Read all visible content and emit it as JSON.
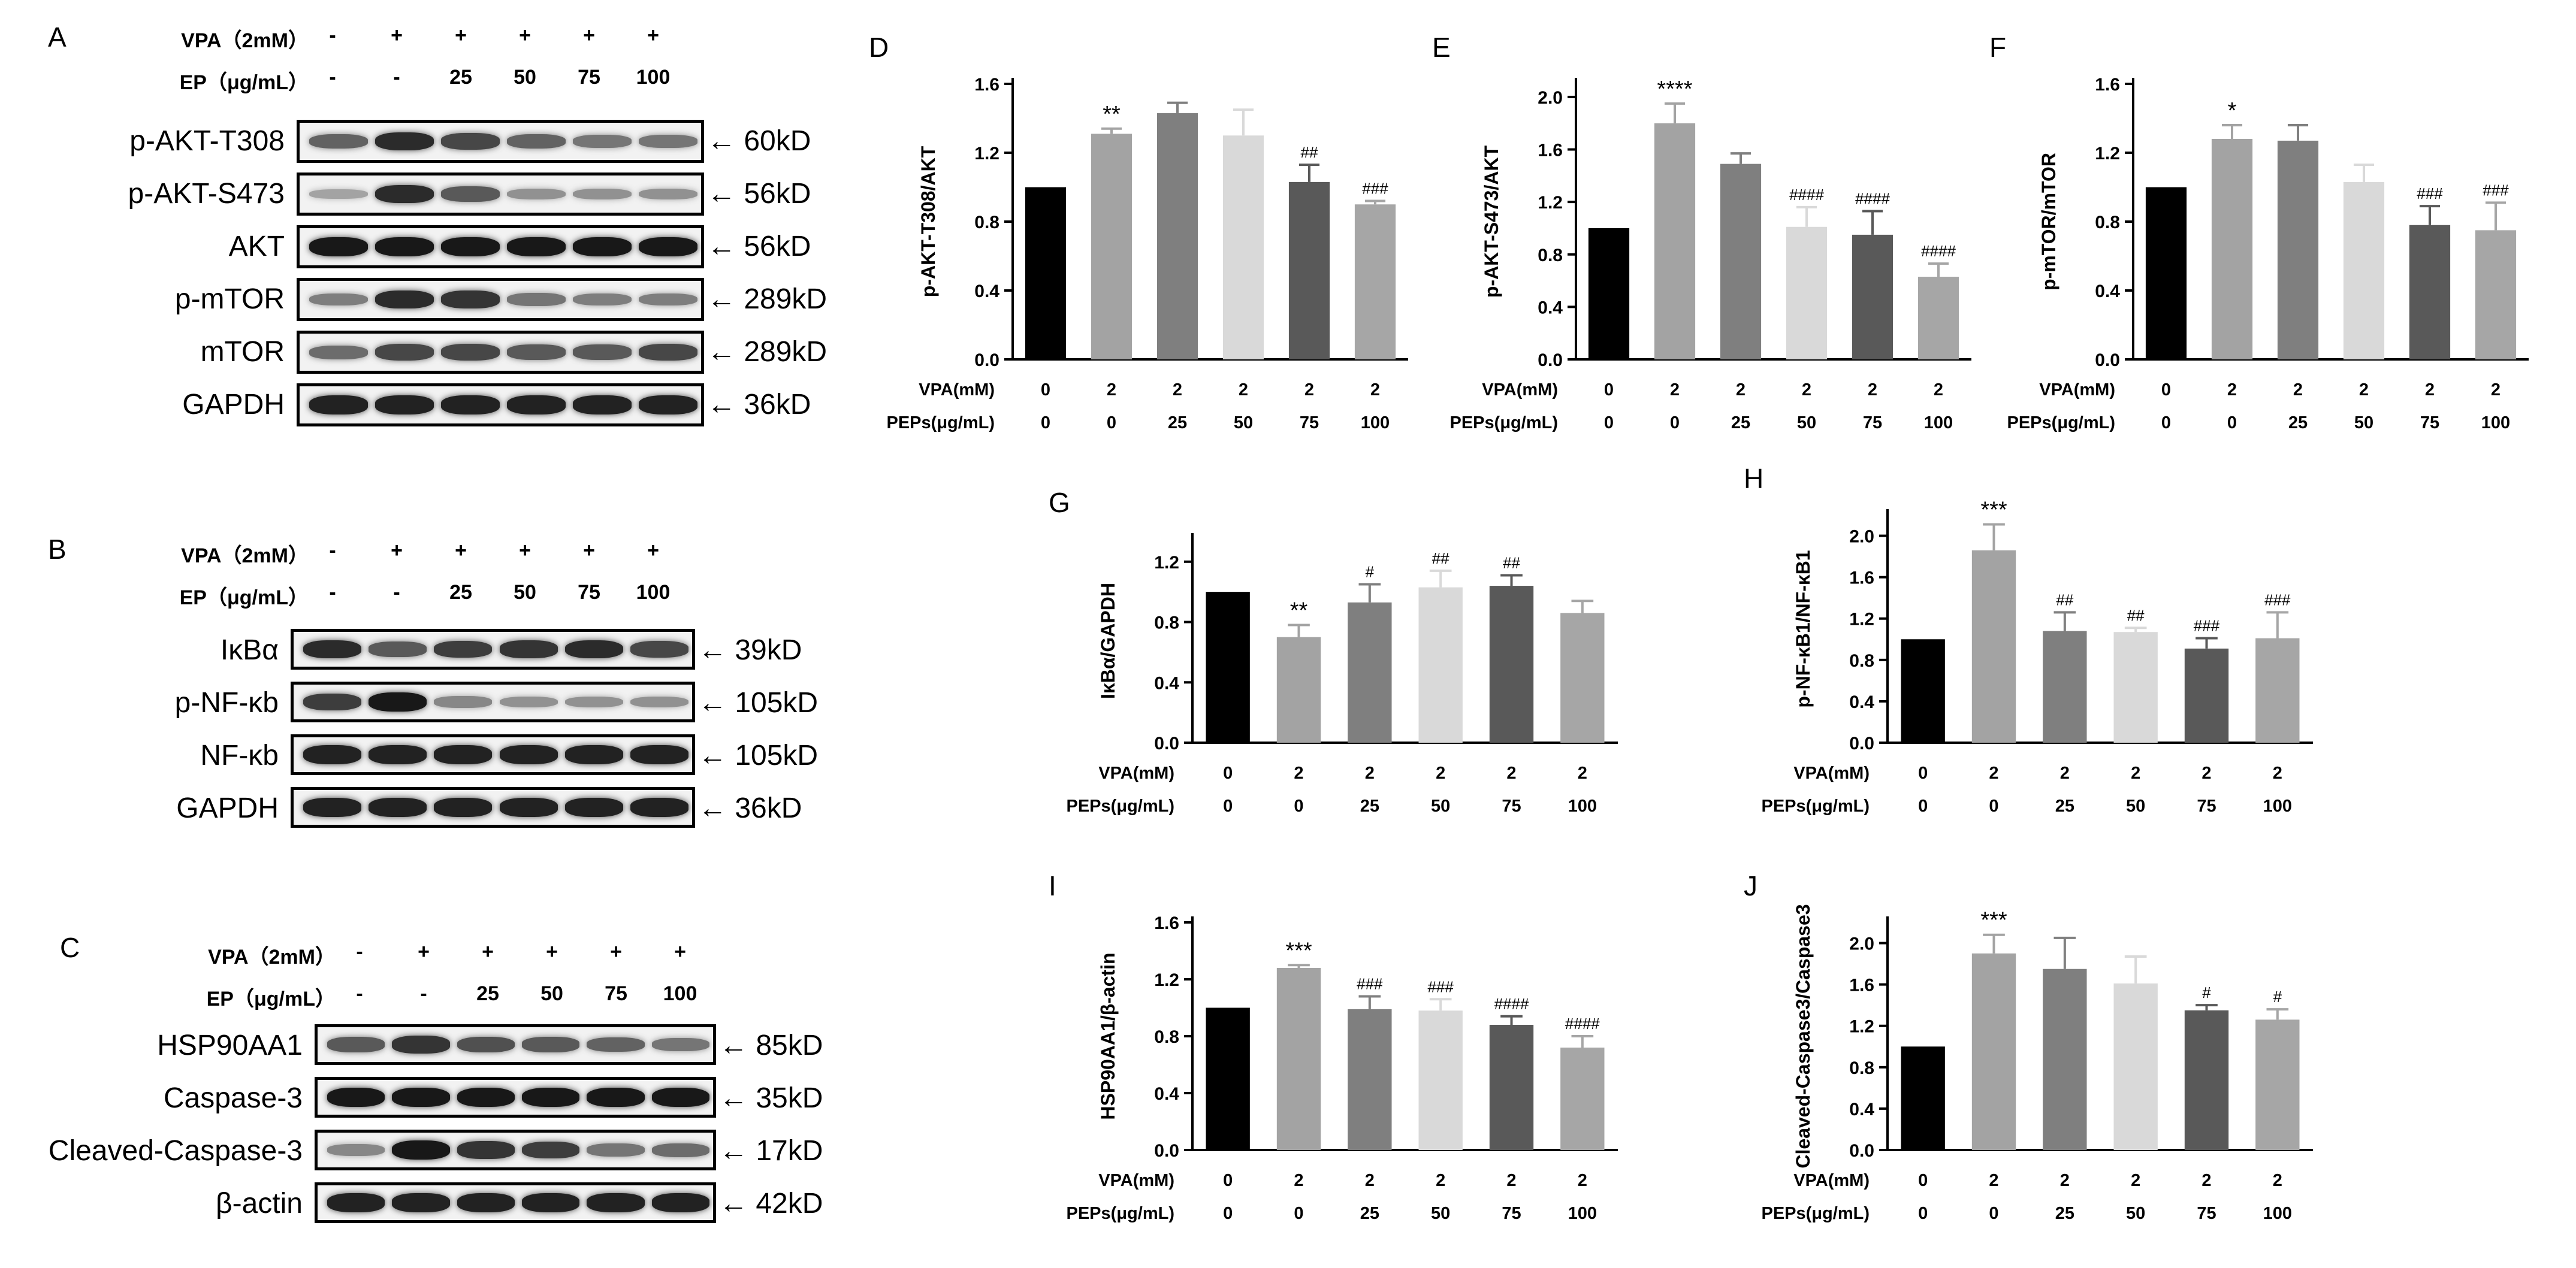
{
  "western_blots": [
    {
      "panel": "A",
      "condition_rows": [
        {
          "label": "VPA（2mM）",
          "values": [
            "-",
            "+",
            "+",
            "+",
            "+",
            "+"
          ]
        },
        {
          "label": "EP（μg/mL）",
          "values": [
            "-",
            "-",
            "25",
            "50",
            "75",
            "100"
          ]
        }
      ],
      "blots": [
        {
          "name": "p-AKT-T308",
          "kd": "60kD",
          "intensity": [
            0.55,
            0.85,
            0.7,
            0.55,
            0.45,
            0.45
          ]
        },
        {
          "name": "p-AKT-S473",
          "kd": "56kD",
          "intensity": [
            0.2,
            0.85,
            0.6,
            0.3,
            0.3,
            0.3
          ]
        },
        {
          "name": "AKT",
          "kd": "56kD",
          "intensity": [
            0.95,
            0.95,
            0.95,
            0.95,
            0.95,
            0.95
          ]
        },
        {
          "name": "p-mTOR",
          "kd": "289kD",
          "intensity": [
            0.4,
            0.85,
            0.8,
            0.45,
            0.4,
            0.4
          ]
        },
        {
          "name": "mTOR",
          "kd": "289kD",
          "intensity": [
            0.5,
            0.7,
            0.7,
            0.6,
            0.6,
            0.7
          ]
        },
        {
          "name": "GAPDH",
          "kd": "36kD",
          "intensity": [
            0.9,
            0.9,
            0.9,
            0.9,
            0.9,
            0.9
          ]
        }
      ]
    },
    {
      "panel": "B",
      "condition_rows": [
        {
          "label": "VPA（2mM）",
          "values": [
            "-",
            "+",
            "+",
            "+",
            "+",
            "+"
          ]
        },
        {
          "label": "EP（μg/mL）",
          "values": [
            "-",
            "-",
            "25",
            "50",
            "75",
            "100"
          ]
        }
      ],
      "blots": [
        {
          "name": "IκBα",
          "kd": "39kD",
          "intensity": [
            0.85,
            0.6,
            0.75,
            0.8,
            0.85,
            0.7
          ]
        },
        {
          "name": "p-NF-κb",
          "kd": "105kD",
          "intensity": [
            0.75,
            0.95,
            0.35,
            0.3,
            0.3,
            0.3
          ]
        },
        {
          "name": "NF-κb",
          "kd": "105kD",
          "intensity": [
            0.9,
            0.9,
            0.9,
            0.9,
            0.9,
            0.9
          ]
        },
        {
          "name": "GAPDH",
          "kd": "36kD",
          "intensity": [
            0.9,
            0.9,
            0.9,
            0.9,
            0.9,
            0.9
          ]
        }
      ]
    },
    {
      "panel": "C",
      "condition_rows": [
        {
          "label": "VPA（2mM）",
          "values": [
            "-",
            "+",
            "+",
            "+",
            "+",
            "+"
          ]
        },
        {
          "label": "EP（μg/mL）",
          "values": [
            "-",
            "-",
            "25",
            "50",
            "75",
            "100"
          ]
        }
      ],
      "blots": [
        {
          "name": "HSP90AA1",
          "kd": "85kD",
          "intensity": [
            0.6,
            0.8,
            0.65,
            0.6,
            0.55,
            0.45
          ]
        },
        {
          "name": "Caspase-3",
          "kd": "35kD",
          "intensity": [
            0.95,
            0.95,
            0.95,
            0.95,
            0.95,
            0.95
          ]
        },
        {
          "name": "Cleaved-Caspase-3",
          "kd": "17kD",
          "intensity": [
            0.35,
            0.95,
            0.8,
            0.75,
            0.45,
            0.5
          ]
        },
        {
          "name": "β-actin",
          "kd": "42kD",
          "intensity": [
            0.9,
            0.9,
            0.9,
            0.9,
            0.9,
            0.9
          ]
        }
      ]
    }
  ],
  "chart_data": [
    {
      "panel": "D",
      "type": "bar",
      "ylabel": "p-AKT-T308/AKT",
      "yticks": [
        0.0,
        0.4,
        0.8,
        1.2,
        1.6
      ],
      "ylim": [
        0,
        1.6
      ],
      "values": [
        1.0,
        1.31,
        1.43,
        1.3,
        1.03,
        0.9
      ],
      "errors": [
        0,
        0.03,
        0.06,
        0.15,
        0.1,
        0.02
      ],
      "annotations": [
        "",
        "**",
        "",
        "",
        "##",
        "###"
      ],
      "xrows": [
        {
          "label": "VPA(mM)",
          "values": [
            "0",
            "2",
            "2",
            "2",
            "2",
            "2"
          ]
        },
        {
          "label": "PEPs(μg/mL)",
          "values": [
            "0",
            "0",
            "25",
            "50",
            "75",
            "100"
          ]
        }
      ],
      "colors": [
        "#000000",
        "#a3a3a3",
        "#7f7f7f",
        "#d9d9d9",
        "#595959",
        "#a6a6a6"
      ]
    },
    {
      "panel": "E",
      "type": "bar",
      "ylabel": "p-AKT-S473/AKT",
      "yticks": [
        0.0,
        0.4,
        0.8,
        1.2,
        1.6,
        2.0
      ],
      "ylim": [
        0,
        2.1
      ],
      "values": [
        1.0,
        1.8,
        1.49,
        1.01,
        0.95,
        0.63
      ],
      "errors": [
        0,
        0.15,
        0.08,
        0.15,
        0.18,
        0.1
      ],
      "annotations": [
        "",
        "****",
        "",
        "####",
        "####",
        "####"
      ],
      "xrows": [
        {
          "label": "VPA(mM)",
          "values": [
            "0",
            "2",
            "2",
            "2",
            "2",
            "2"
          ]
        },
        {
          "label": "PEPs(μg/mL)",
          "values": [
            "0",
            "0",
            "25",
            "50",
            "75",
            "100"
          ]
        }
      ],
      "colors": [
        "#000000",
        "#a3a3a3",
        "#7f7f7f",
        "#d9d9d9",
        "#595959",
        "#a6a6a6"
      ]
    },
    {
      "panel": "F",
      "type": "bar",
      "ylabel": "p-mTOR/mTOR",
      "yticks": [
        0.0,
        0.4,
        0.8,
        1.2,
        1.6
      ],
      "ylim": [
        0,
        1.6
      ],
      "values": [
        1.0,
        1.28,
        1.27,
        1.03,
        0.78,
        0.75
      ],
      "errors": [
        0,
        0.08,
        0.09,
        0.1,
        0.11,
        0.16
      ],
      "annotations": [
        "",
        "*",
        "",
        "",
        "###",
        "###"
      ],
      "xrows": [
        {
          "label": "VPA(mM)",
          "values": [
            "0",
            "2",
            "2",
            "2",
            "2",
            "2"
          ]
        },
        {
          "label": "PEPs(μg/mL)",
          "values": [
            "0",
            "0",
            "25",
            "50",
            "75",
            "100"
          ]
        }
      ],
      "colors": [
        "#000000",
        "#a3a3a3",
        "#7f7f7f",
        "#d9d9d9",
        "#595959",
        "#a6a6a6"
      ]
    },
    {
      "panel": "G",
      "type": "bar",
      "ylabel": "IκBα/GAPDH",
      "yticks": [
        0.0,
        0.4,
        0.8,
        1.2
      ],
      "ylim": [
        0,
        1.35
      ],
      "values": [
        1.0,
        0.7,
        0.93,
        1.03,
        1.04,
        0.86
      ],
      "errors": [
        0,
        0.08,
        0.12,
        0.11,
        0.07,
        0.08
      ],
      "annotations": [
        "",
        "**",
        "#",
        "##",
        "##",
        ""
      ],
      "xrows": [
        {
          "label": "VPA(mM)",
          "values": [
            "0",
            "2",
            "2",
            "2",
            "2",
            "2"
          ]
        },
        {
          "label": "PEPs(μg/mL)",
          "values": [
            "0",
            "0",
            "25",
            "50",
            "75",
            "100"
          ]
        }
      ],
      "colors": [
        "#000000",
        "#a3a3a3",
        "#7f7f7f",
        "#d9d9d9",
        "#595959",
        "#a6a6a6"
      ]
    },
    {
      "panel": "H",
      "type": "bar",
      "ylabel": "p-NF-κB1/NF-κB1",
      "yticks": [
        0.0,
        0.4,
        0.8,
        1.2,
        1.6,
        2.0
      ],
      "ylim": [
        0,
        2.2
      ],
      "values": [
        1.0,
        1.86,
        1.08,
        1.07,
        0.91,
        1.01
      ],
      "errors": [
        0,
        0.25,
        0.18,
        0.04,
        0.1,
        0.25
      ],
      "annotations": [
        "",
        "***",
        "##",
        "##",
        "###",
        "###"
      ],
      "xrows": [
        {
          "label": "VPA(mM)",
          "values": [
            "0",
            "2",
            "2",
            "2",
            "2",
            "2"
          ]
        },
        {
          "label": "PEPs(μg/mL)",
          "values": [
            "0",
            "0",
            "25",
            "50",
            "75",
            "100"
          ]
        }
      ],
      "colors": [
        "#000000",
        "#a3a3a3",
        "#7f7f7f",
        "#d9d9d9",
        "#595959",
        "#a6a6a6"
      ]
    },
    {
      "panel": "I",
      "type": "bar",
      "ylabel": "HSP90AA1/β-actin",
      "yticks": [
        0.0,
        0.4,
        0.8,
        1.2,
        1.6
      ],
      "ylim": [
        0,
        1.6
      ],
      "values": [
        1.0,
        1.28,
        0.99,
        0.98,
        0.88,
        0.72
      ],
      "errors": [
        0,
        0.02,
        0.09,
        0.08,
        0.06,
        0.08
      ],
      "annotations": [
        "",
        "***",
        "###",
        "###",
        "####",
        "####"
      ],
      "xrows": [
        {
          "label": "VPA(mM)",
          "values": [
            "0",
            "2",
            "2",
            "2",
            "2",
            "2"
          ]
        },
        {
          "label": "PEPs(μg/mL)",
          "values": [
            "0",
            "0",
            "25",
            "50",
            "75",
            "100"
          ]
        }
      ],
      "colors": [
        "#000000",
        "#a3a3a3",
        "#7f7f7f",
        "#d9d9d9",
        "#595959",
        "#a6a6a6"
      ]
    },
    {
      "panel": "J",
      "type": "bar",
      "ylabel": "Cleaved-Caspase3/Caspase3",
      "yticks": [
        0.0,
        0.4,
        0.8,
        1.2,
        1.6,
        2.0
      ],
      "ylim": [
        0,
        2.2
      ],
      "values": [
        1.0,
        1.9,
        1.75,
        1.61,
        1.35,
        1.26
      ],
      "errors": [
        0,
        0.18,
        0.3,
        0.26,
        0.05,
        0.1
      ],
      "annotations": [
        "",
        "***",
        "",
        "",
        "#",
        "#"
      ],
      "xrows": [
        {
          "label": "VPA(mM)",
          "values": [
            "0",
            "2",
            "2",
            "2",
            "2",
            "2"
          ]
        },
        {
          "label": "PEPs(μg/mL)",
          "values": [
            "0",
            "0",
            "25",
            "50",
            "75",
            "100"
          ]
        }
      ],
      "colors": [
        "#000000",
        "#a3a3a3",
        "#7f7f7f",
        "#d9d9d9",
        "#595959",
        "#a6a6a6"
      ]
    }
  ]
}
